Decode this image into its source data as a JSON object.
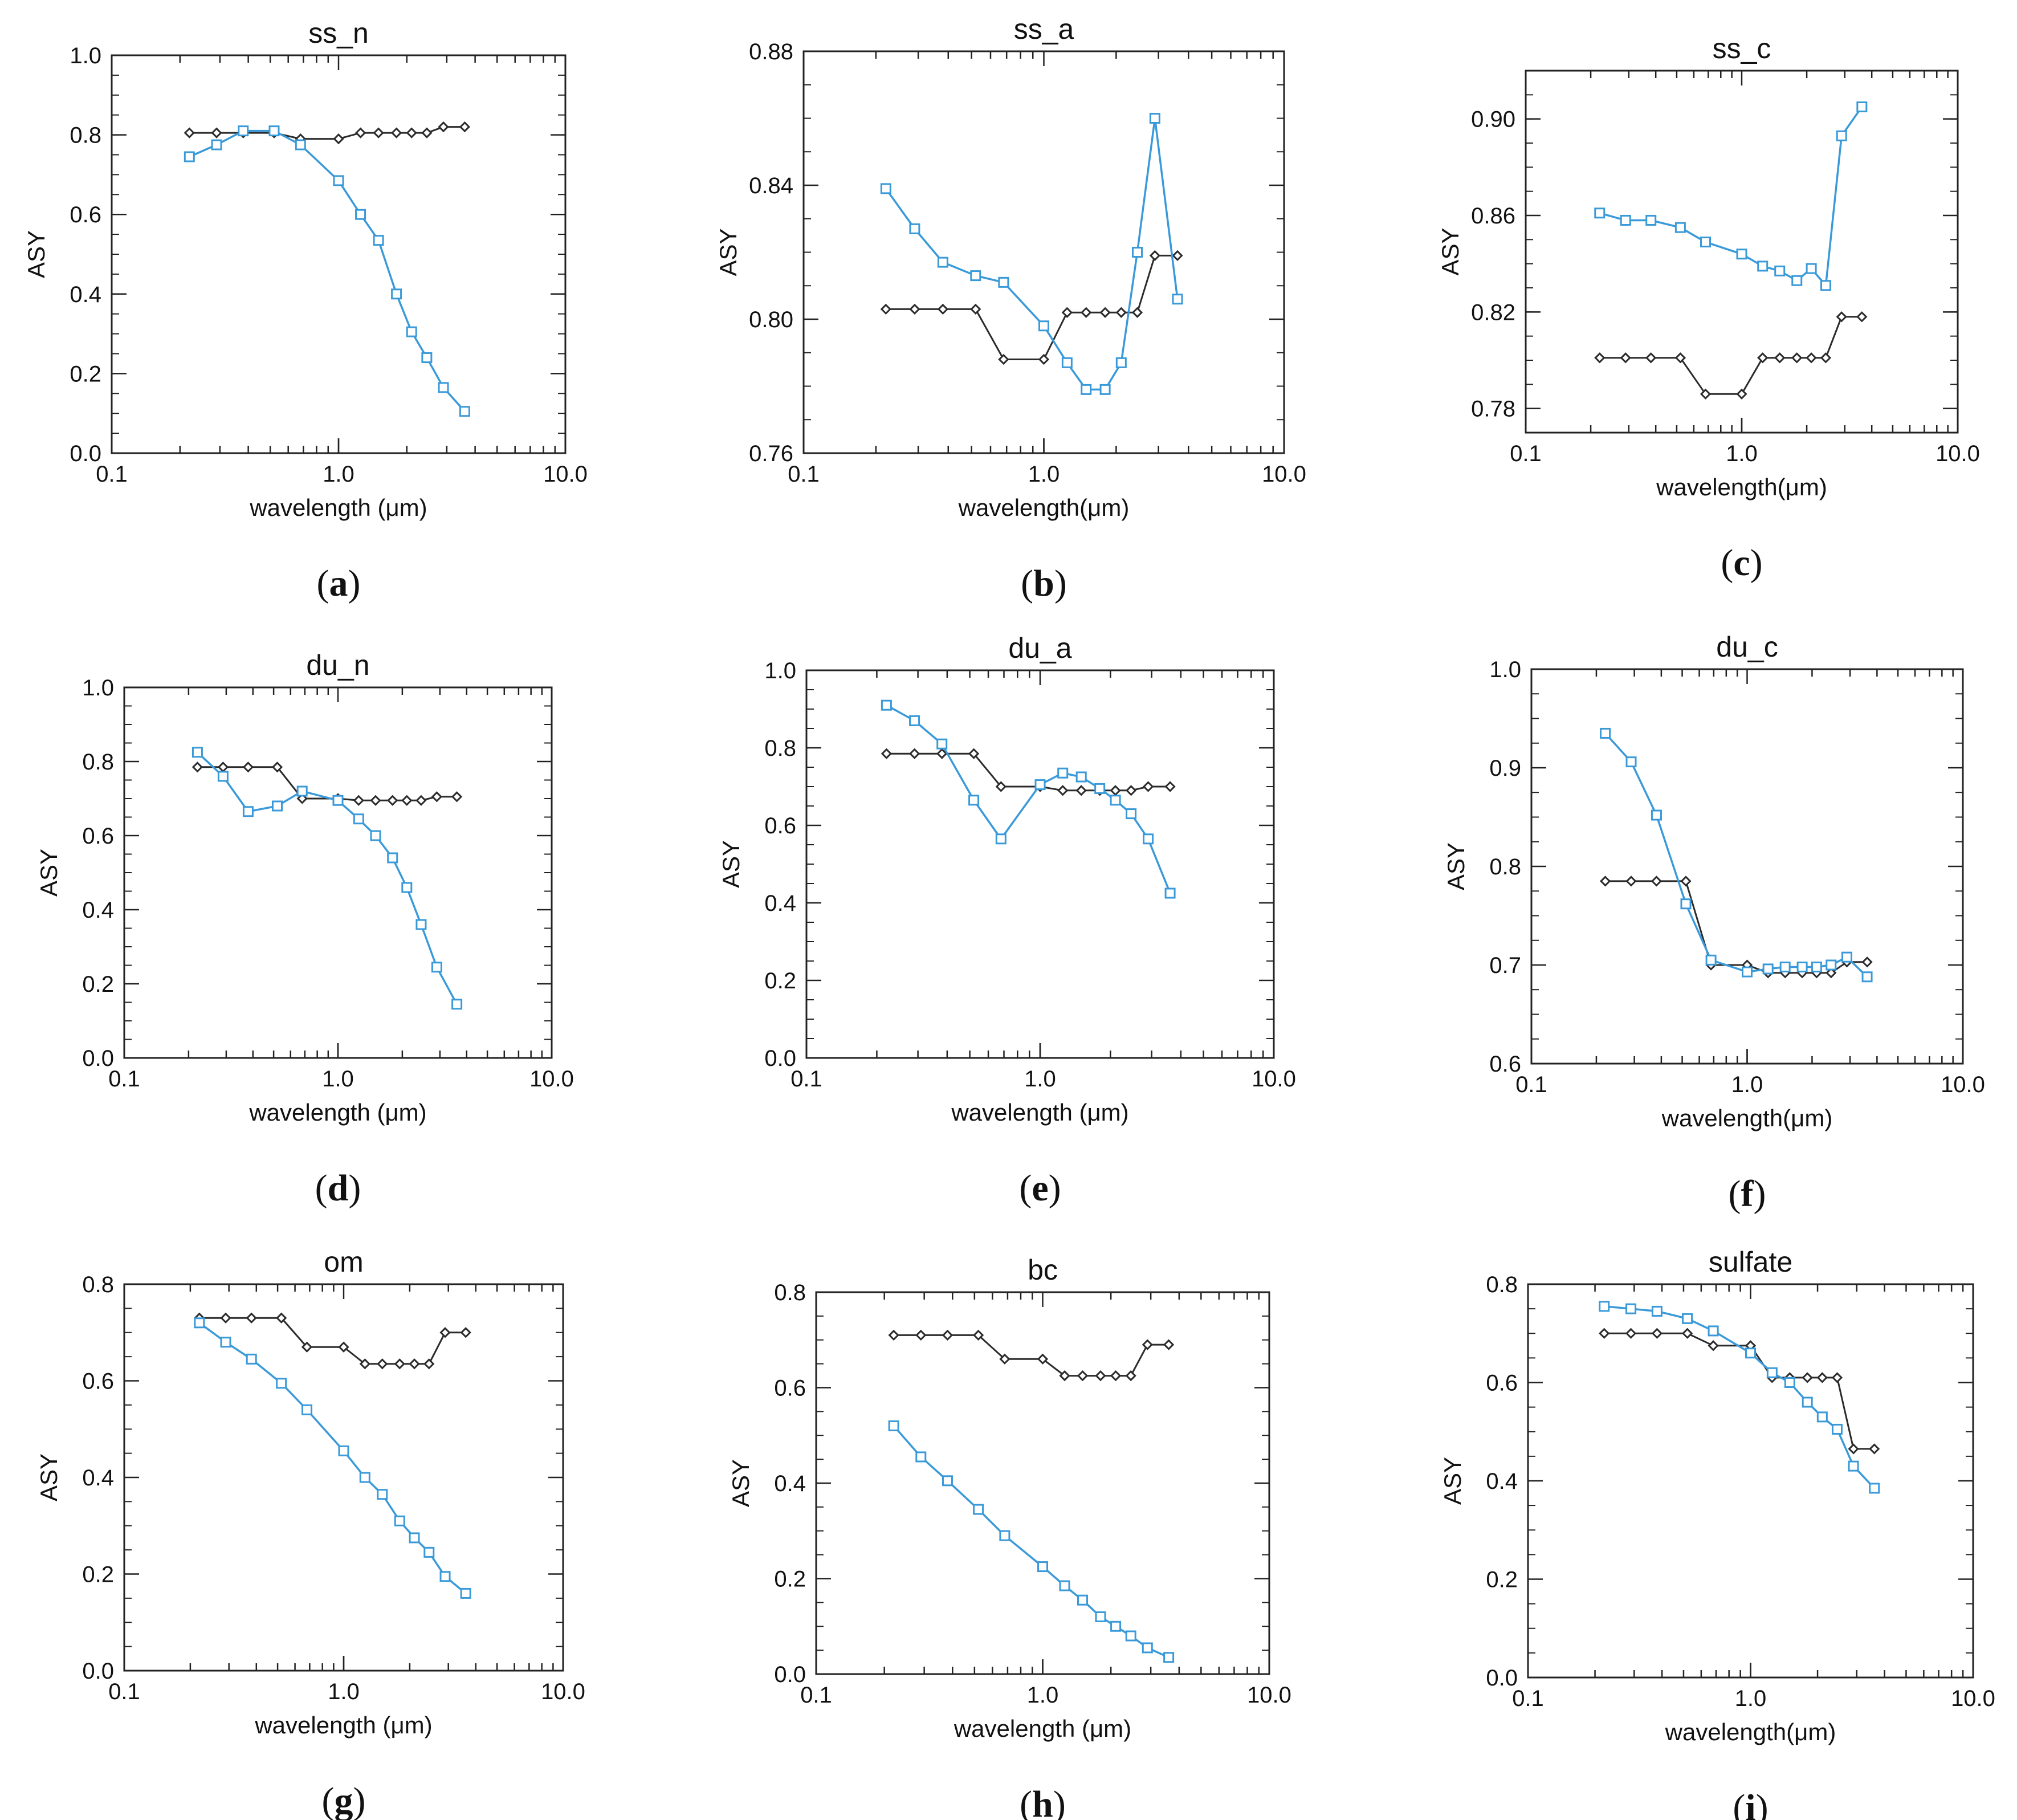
{
  "figure": {
    "series_names": [
      "black diamonds",
      "blue squares"
    ],
    "colors": {
      "black_series": "#2b2b2b",
      "blue_series": "#3a9ad9",
      "axis": "#222222"
    }
  },
  "chart_data": [
    {
      "type": "line",
      "title": "ss_n",
      "caption": "a",
      "xlabel": "wavelength (μm)",
      "ylabel": "ASY",
      "xscale": "log",
      "xlim": [
        0.1,
        10
      ],
      "xticks": [
        "0.1",
        "1.0",
        "10.0"
      ],
      "ylim": [
        0.0,
        1.0
      ],
      "yticks": [
        "0.0",
        "0.2",
        "0.4",
        "0.6",
        "0.8",
        "1.0"
      ],
      "series": [
        {
          "name": "black",
          "x": [
            0.22,
            0.29,
            0.38,
            0.52,
            0.68,
            1.0,
            1.25,
            1.5,
            1.8,
            2.1,
            2.45,
            2.9,
            3.6
          ],
          "values": [
            0.805,
            0.805,
            0.805,
            0.805,
            0.79,
            0.79,
            0.805,
            0.805,
            0.805,
            0.805,
            0.805,
            0.82,
            0.82
          ]
        },
        {
          "name": "blue",
          "x": [
            0.22,
            0.29,
            0.38,
            0.52,
            0.68,
            1.0,
            1.25,
            1.5,
            1.8,
            2.1,
            2.45,
            2.9,
            3.6
          ],
          "values": [
            0.745,
            0.775,
            0.81,
            0.81,
            0.775,
            0.685,
            0.6,
            0.535,
            0.4,
            0.305,
            0.24,
            0.165,
            0.105
          ]
        }
      ]
    },
    {
      "type": "line",
      "title": "ss_a",
      "caption": "b",
      "xlabel": "wavelength(μm)",
      "ylabel": "ASY",
      "xscale": "log",
      "xlim": [
        0.1,
        10
      ],
      "xticks": [
        "0.1",
        "1.0",
        "10.0"
      ],
      "ylim": [
        0.76,
        0.88
      ],
      "yticks": [
        "0.76",
        "0.80",
        "0.84",
        "0.88"
      ],
      "series": [
        {
          "name": "black",
          "x": [
            0.22,
            0.29,
            0.38,
            0.52,
            0.68,
            1.0,
            1.25,
            1.5,
            1.8,
            2.1,
            2.45,
            2.9,
            3.6
          ],
          "values": [
            0.803,
            0.803,
            0.803,
            0.803,
            0.788,
            0.788,
            0.802,
            0.802,
            0.802,
            0.802,
            0.802,
            0.819,
            0.819
          ]
        },
        {
          "name": "blue",
          "x": [
            0.22,
            0.29,
            0.38,
            0.52,
            0.68,
            1.0,
            1.25,
            1.5,
            1.8,
            2.1,
            2.45,
            2.9,
            3.6
          ],
          "values": [
            0.839,
            0.827,
            0.817,
            0.813,
            0.811,
            0.798,
            0.787,
            0.779,
            0.779,
            0.787,
            0.82,
            0.86,
            0.806
          ]
        }
      ]
    },
    {
      "type": "line",
      "title": "ss_c",
      "caption": "c",
      "xlabel": "wavelength(μm)",
      "ylabel": "ASY",
      "xscale": "log",
      "xlim": [
        0.1,
        10
      ],
      "xticks": [
        "0.1",
        "1.0",
        "10.0"
      ],
      "ylim": [
        0.77,
        0.92
      ],
      "yticks": [
        "0.78",
        "0.82",
        "0.86",
        "0.90"
      ],
      "series": [
        {
          "name": "black",
          "x": [
            0.22,
            0.29,
            0.38,
            0.52,
            0.68,
            1.0,
            1.25,
            1.5,
            1.8,
            2.1,
            2.45,
            2.9,
            3.6
          ],
          "values": [
            0.801,
            0.801,
            0.801,
            0.801,
            0.786,
            0.786,
            0.801,
            0.801,
            0.801,
            0.801,
            0.801,
            0.818,
            0.818
          ]
        },
        {
          "name": "blue",
          "x": [
            0.22,
            0.29,
            0.38,
            0.52,
            0.68,
            1.0,
            1.25,
            1.5,
            1.8,
            2.1,
            2.45,
            2.9,
            3.6
          ],
          "values": [
            0.861,
            0.858,
            0.858,
            0.855,
            0.849,
            0.844,
            0.839,
            0.837,
            0.833,
            0.838,
            0.831,
            0.893,
            0.905
          ]
        }
      ]
    },
    {
      "type": "line",
      "title": "du_n",
      "caption": "d",
      "xlabel": "wavelength (μm)",
      "ylabel": "ASY",
      "xscale": "log",
      "xlim": [
        0.1,
        10
      ],
      "xticks": [
        "0.1",
        "1.0",
        "10.0"
      ],
      "ylim": [
        0.0,
        1.0
      ],
      "yticks": [
        "0.0",
        "0.2",
        "0.4",
        "0.6",
        "0.8",
        "1.0"
      ],
      "series": [
        {
          "name": "black",
          "x": [
            0.22,
            0.29,
            0.38,
            0.52,
            0.68,
            1.0,
            1.25,
            1.5,
            1.8,
            2.1,
            2.45,
            2.9,
            3.6
          ],
          "values": [
            0.785,
            0.785,
            0.785,
            0.785,
            0.7,
            0.7,
            0.695,
            0.695,
            0.695,
            0.695,
            0.695,
            0.705,
            0.705
          ]
        },
        {
          "name": "blue",
          "x": [
            0.22,
            0.29,
            0.38,
            0.52,
            0.68,
            1.0,
            1.25,
            1.5,
            1.8,
            2.1,
            2.45,
            2.9,
            3.6
          ],
          "values": [
            0.825,
            0.76,
            0.665,
            0.68,
            0.72,
            0.695,
            0.645,
            0.6,
            0.54,
            0.46,
            0.36,
            0.245,
            0.145
          ]
        }
      ]
    },
    {
      "type": "line",
      "title": "du_a",
      "caption": "e",
      "xlabel": "wavelength (μm)",
      "ylabel": "ASY",
      "xscale": "log",
      "xlim": [
        0.1,
        10
      ],
      "xticks": [
        "0.1",
        "1.0",
        "10.0"
      ],
      "ylim": [
        0.0,
        1.0
      ],
      "yticks": [
        "0.0",
        "0.2",
        "0.4",
        "0.6",
        "0.8",
        "1.0"
      ],
      "series": [
        {
          "name": "black",
          "x": [
            0.22,
            0.29,
            0.38,
            0.52,
            0.68,
            1.0,
            1.25,
            1.5,
            1.8,
            2.1,
            2.45,
            2.9,
            3.6
          ],
          "values": [
            0.785,
            0.785,
            0.785,
            0.785,
            0.7,
            0.7,
            0.69,
            0.69,
            0.69,
            0.69,
            0.69,
            0.7,
            0.7
          ]
        },
        {
          "name": "blue",
          "x": [
            0.22,
            0.29,
            0.38,
            0.52,
            0.68,
            1.0,
            1.25,
            1.5,
            1.8,
            2.1,
            2.45,
            2.9,
            3.6
          ],
          "values": [
            0.91,
            0.87,
            0.81,
            0.665,
            0.565,
            0.705,
            0.735,
            0.725,
            0.695,
            0.665,
            0.63,
            0.565,
            0.425
          ]
        }
      ]
    },
    {
      "type": "line",
      "title": "du_c",
      "caption": "f",
      "xlabel": "wavelength(μm)",
      "ylabel": "ASY",
      "xscale": "log",
      "xlim": [
        0.1,
        10
      ],
      "xticks": [
        "0.1",
        "1.0",
        "10.0"
      ],
      "ylim": [
        0.6,
        1.0
      ],
      "yticks": [
        "0.6",
        "0.7",
        "0.8",
        "0.9",
        "1.0"
      ],
      "series": [
        {
          "name": "black",
          "x": [
            0.22,
            0.29,
            0.38,
            0.52,
            0.68,
            1.0,
            1.25,
            1.5,
            1.8,
            2.1,
            2.45,
            2.9,
            3.6
          ],
          "values": [
            0.785,
            0.785,
            0.785,
            0.785,
            0.7,
            0.7,
            0.692,
            0.692,
            0.692,
            0.692,
            0.692,
            0.703,
            0.703
          ]
        },
        {
          "name": "blue",
          "x": [
            0.22,
            0.29,
            0.38,
            0.52,
            0.68,
            1.0,
            1.25,
            1.5,
            1.8,
            2.1,
            2.45,
            2.9,
            3.6
          ],
          "values": [
            0.935,
            0.906,
            0.852,
            0.762,
            0.705,
            0.693,
            0.696,
            0.698,
            0.698,
            0.698,
            0.7,
            0.708,
            0.688
          ]
        }
      ]
    },
    {
      "type": "line",
      "title": "om",
      "caption": "g",
      "xlabel": "wavelength (μm)",
      "ylabel": "ASY",
      "xscale": "log",
      "xlim": [
        0.1,
        10
      ],
      "xticks": [
        "0.1",
        "1.0",
        "10.0"
      ],
      "ylim": [
        0.0,
        0.8
      ],
      "yticks": [
        "0.0",
        "0.2",
        "0.4",
        "0.6",
        "0.8"
      ],
      "series": [
        {
          "name": "black",
          "x": [
            0.22,
            0.29,
            0.38,
            0.52,
            0.68,
            1.0,
            1.25,
            1.5,
            1.8,
            2.1,
            2.45,
            2.9,
            3.6
          ],
          "values": [
            0.73,
            0.73,
            0.73,
            0.73,
            0.67,
            0.67,
            0.635,
            0.635,
            0.635,
            0.635,
            0.635,
            0.7,
            0.7
          ]
        },
        {
          "name": "blue",
          "x": [
            0.22,
            0.29,
            0.38,
            0.52,
            0.68,
            1.0,
            1.25,
            1.5,
            1.8,
            2.1,
            2.45,
            2.9,
            3.6
          ],
          "values": [
            0.72,
            0.68,
            0.645,
            0.595,
            0.54,
            0.455,
            0.4,
            0.365,
            0.31,
            0.275,
            0.245,
            0.195,
            0.16
          ]
        }
      ]
    },
    {
      "type": "line",
      "title": "bc",
      "caption": "h",
      "xlabel": "wavelength (μm)",
      "ylabel": "ASY",
      "xscale": "log",
      "xlim": [
        0.1,
        10
      ],
      "xticks": [
        "0.1",
        "1.0",
        "10.0"
      ],
      "ylim": [
        0.0,
        0.8
      ],
      "yticks": [
        "0.0",
        "0.2",
        "0.4",
        "0.6",
        "0.8"
      ],
      "series": [
        {
          "name": "black",
          "x": [
            0.22,
            0.29,
            0.38,
            0.52,
            0.68,
            1.0,
            1.25,
            1.5,
            1.8,
            2.1,
            2.45,
            2.9,
            3.6
          ],
          "values": [
            0.71,
            0.71,
            0.71,
            0.71,
            0.66,
            0.66,
            0.625,
            0.625,
            0.625,
            0.625,
            0.625,
            0.69,
            0.69
          ]
        },
        {
          "name": "blue",
          "x": [
            0.22,
            0.29,
            0.38,
            0.52,
            0.68,
            1.0,
            1.25,
            1.5,
            1.8,
            2.1,
            2.45,
            2.9,
            3.6
          ],
          "values": [
            0.52,
            0.455,
            0.405,
            0.345,
            0.29,
            0.225,
            0.185,
            0.155,
            0.12,
            0.1,
            0.08,
            0.055,
            0.035
          ]
        }
      ]
    },
    {
      "type": "line",
      "title": "sulfate",
      "caption": "i",
      "xlabel": "wavelength(μm)",
      "ylabel": "ASY",
      "xscale": "log",
      "xlim": [
        0.1,
        10
      ],
      "xticks": [
        "0.1",
        "1.0",
        "10.0"
      ],
      "ylim": [
        0.0,
        0.8
      ],
      "yticks": [
        "0.0",
        "0.2",
        "0.4",
        "0.6",
        "0.8"
      ],
      "series": [
        {
          "name": "black",
          "x": [
            0.22,
            0.29,
            0.38,
            0.52,
            0.68,
            1.0,
            1.25,
            1.5,
            1.8,
            2.1,
            2.45,
            2.9,
            3.6
          ],
          "values": [
            0.7,
            0.7,
            0.7,
            0.7,
            0.675,
            0.675,
            0.61,
            0.61,
            0.61,
            0.61,
            0.61,
            0.465,
            0.465
          ]
        },
        {
          "name": "blue",
          "x": [
            0.22,
            0.29,
            0.38,
            0.52,
            0.68,
            1.0,
            1.25,
            1.5,
            1.8,
            2.1,
            2.45,
            2.9,
            3.6
          ],
          "values": [
            0.755,
            0.75,
            0.745,
            0.73,
            0.705,
            0.66,
            0.62,
            0.6,
            0.56,
            0.53,
            0.505,
            0.43,
            0.385
          ]
        }
      ]
    }
  ]
}
